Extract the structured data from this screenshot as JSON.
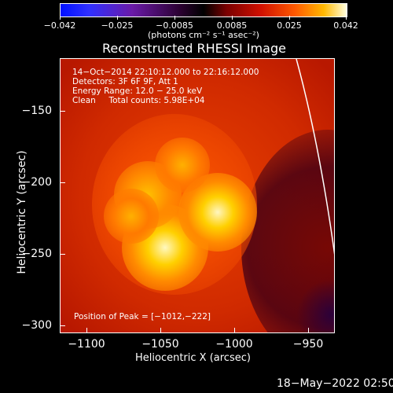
{
  "colorbar": {
    "ticks": [
      "−0.042",
      "−0.025",
      "−0.0085",
      "0.0085",
      "0.025",
      "0.042"
    ],
    "units": "(photons cm⁻² s⁻¹ asec⁻²)"
  },
  "title": "Reconstructed RHESSI Image",
  "info": {
    "line1": "14−Oct−2014 22:10:12.000 to 22:16:12.000",
    "line2": "Detectors: 3F 6F 9F, Att 1",
    "line3": "Energy Range: 12.0 − 25.0 keV",
    "line4": "Clean     Total counts: 5.98E+04"
  },
  "peak": "Position of Peak = [−1012,−222]",
  "axes": {
    "ylabel": "Heliocentric  Y (arcsec)",
    "xlabel": "Heliocentric X (arcsec)",
    "yticks": [
      "−150",
      "−200",
      "−250",
      "−300"
    ],
    "xticks": [
      "−1100",
      "−1050",
      "−1000",
      "−950"
    ]
  },
  "timestamp": "18−May−2022 02:50"
}
